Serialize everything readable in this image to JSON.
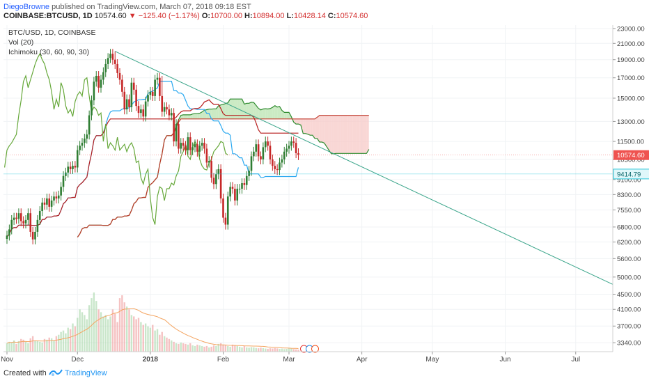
{
  "header": {
    "user": "DiegoBrowne",
    "published": "published on TradingView.com, March 07, 2018 09:18 EST",
    "symbol": "COINBASE:BTCUSD, 1D",
    "last": "10574.60",
    "change": "▼ −125.40 (−1.17%)",
    "o_label": "O:",
    "o_value": "10700.00",
    "h_label": "H:",
    "h_value": "10894.00",
    "l_label": "L:",
    "l_value": "10428.14",
    "c_label": "C:",
    "c_value": "10574.60"
  },
  "legend": [
    "BTC/USD, 1D, COINBASE",
    "Vol (20)",
    "Ichimoku (30, 60, 90, 30)"
  ],
  "footer": {
    "created_with": "Created with",
    "brand": "TradingView"
  },
  "colors": {
    "up": "#2e7d32",
    "down": "#c62828",
    "tenkan": "#29a8f0",
    "kijun": "#b71c1c",
    "chikou": "#66a83a",
    "spanA": "#2e8b2e",
    "spanB": "#c0392b",
    "cloud_bull": "#b9e3b0",
    "cloud_bear": "#f7c9c7",
    "trend": "#3aa58a",
    "vol_ma": "#f4a460",
    "price_label": "#ef5350",
    "level_label": "#26c6da"
  },
  "chart_data": {
    "type": "candlestick",
    "title": "BTC/USD, 1D, COINBASE",
    "y_ticks": [
      23000,
      21000,
      19000,
      17000,
      15000,
      13000,
      11500,
      10300,
      9100,
      8300,
      7550,
      6800,
      6200,
      5600,
      5000,
      4500,
      4100,
      3700,
      3340
    ],
    "y_tick_labels": [
      "23000.00",
      "21000.00",
      "19000.00",
      "17000.00",
      "15000.00",
      "13000.00",
      "11500.00",
      "10300.00",
      "9100.00",
      "8300.00",
      "7550.00",
      "6800.00",
      "6200.00",
      "5600.00",
      "5000.00",
      "4500.00",
      "4100.00",
      "3700.00",
      "3340.00"
    ],
    "x_ticks": [
      "Nov",
      "Dec",
      "2018",
      "Feb",
      "Mar",
      "Apr",
      "May",
      "Jun",
      "Jul"
    ],
    "x_tick_dates": [
      "2017-11-01",
      "2017-12-01",
      "2018-01-01",
      "2018-02-01",
      "2018-03-01",
      "2018-04-01",
      "2018-05-01",
      "2018-06-01",
      "2018-07-01"
    ],
    "last_price": 10574.6,
    "last_price_label": "10574.60",
    "level": 9414.79,
    "level_label": "9414.79",
    "series_start": "2017-11-01",
    "close": [
      6450,
      6700,
      7100,
      7200,
      7150,
      7400,
      7050,
      6950,
      7100,
      7400,
      6600,
      6300,
      6600,
      7100,
      7500,
      7900,
      7800,
      8100,
      7700,
      8000,
      8200,
      8100,
      8250,
      8700,
      9300,
      9500,
      9850,
      9700,
      9900,
      9800,
      10900,
      11200,
      11400,
      11700,
      12000,
      13500,
      14800,
      16600,
      17200,
      16000,
      16800,
      17600,
      18500,
      19200,
      19700,
      19000,
      18500,
      17500,
      16800,
      15600,
      14000,
      14900,
      14200,
      16500,
      15800,
      14300,
      13700,
      14000,
      13400,
      14700,
      15300,
      15600,
      15200,
      16800,
      17000,
      15200,
      13800,
      14200,
      14000,
      13500,
      13700,
      11500,
      12800,
      11000,
      11400,
      11200,
      10900,
      11800,
      10900,
      11100,
      11300,
      10800,
      11200,
      11400,
      11000,
      10100,
      10200,
      9200,
      8850,
      9400,
      9700,
      8100,
      7200,
      6900,
      8200,
      8700,
      8600,
      8000,
      8600,
      8600,
      8900,
      8800,
      9300,
      9600,
      10500,
      10800,
      11300,
      10500,
      10300,
      11100,
      11500,
      11200,
      10300,
      9900,
      9700,
      9650,
      10100,
      10300,
      10800,
      11000,
      11200,
      11500,
      11400,
      10700,
      10575
    ],
    "highs_special": {
      "2017-12-17": 20000,
      "2018-01-06": 17200
    },
    "volume": [
      60,
      70,
      65,
      80,
      55,
      75,
      90,
      85,
      70,
      60,
      95,
      110,
      80,
      75,
      70,
      65,
      90,
      85,
      100,
      95,
      80,
      110,
      120,
      140,
      150,
      130,
      170,
      160,
      200,
      180,
      240,
      300,
      280,
      260,
      230,
      330,
      380,
      420,
      360,
      300,
      280,
      250,
      260,
      230,
      250,
      300,
      270,
      210,
      380,
      400,
      350,
      320,
      300,
      260,
      250,
      230,
      240,
      210,
      190,
      200,
      180,
      170,
      190,
      150,
      160,
      120,
      140,
      110,
      100,
      90,
      80,
      70,
      60,
      55,
      65,
      60,
      55,
      50,
      60,
      45,
      40,
      50,
      45,
      40,
      35,
      40,
      30,
      35,
      45,
      40,
      55,
      60,
      50,
      45,
      40,
      35,
      50,
      45,
      40,
      35,
      30,
      40,
      30,
      28,
      32,
      30,
      26,
      24,
      28,
      25,
      22,
      20,
      24,
      22,
      25,
      23,
      20,
      22,
      18,
      20,
      24,
      22,
      18,
      16,
      15
    ],
    "volume_ma_label": "Vol (20)",
    "trendline": {
      "from": [
        "2017-12-17",
        20000
      ],
      "to": [
        "2018-07-18",
        4740
      ]
    },
    "ichimoku_params": "30, 60, 90, 30",
    "grid": true,
    "legend_position": "top-left"
  }
}
